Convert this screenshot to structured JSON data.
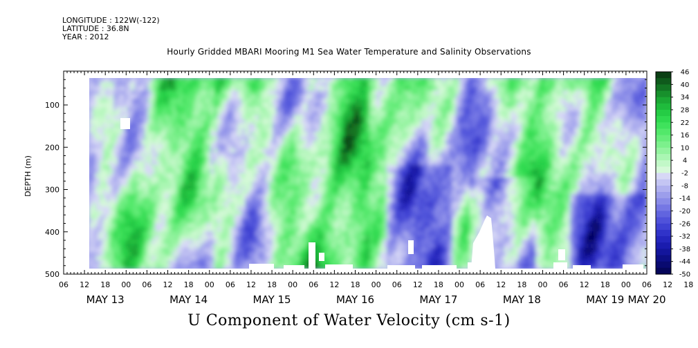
{
  "header": {
    "longitude": "LONGITUDE : 122W(-122)",
    "latitude": "LATITUDE : 36.8N",
    "year": "YEAR : 2012",
    "title": "Hourly Gridded MBARI Mooring M1 Sea Water Temperature and Salinity Observations"
  },
  "chart_data": {
    "type": "heatmap",
    "title": "Hourly Gridded MBARI Mooring M1 Sea Water Temperature and Salinity Observations",
    "variable_title": "U Component of Water Velocity (cm s-1)",
    "ylabel": "DEPTH (m)",
    "y_ticks": [
      100,
      200,
      300,
      400,
      500
    ],
    "y_range": [
      20,
      500
    ],
    "y_inverted": true,
    "x_hour_ticks": [
      "06",
      "12",
      "18",
      "00",
      "06",
      "12",
      "18",
      "00",
      "06",
      "12",
      "18",
      "00",
      "06",
      "12",
      "18",
      "00",
      "06",
      "12",
      "18",
      "00",
      "06",
      "12",
      "18",
      "00",
      "06",
      "12",
      "18",
      "00",
      "06",
      "12",
      "18",
      "00",
      "06"
    ],
    "x_date_labels": [
      {
        "label": "MAY 13",
        "hour": 12
      },
      {
        "label": "MAY 14",
        "hour": 36
      },
      {
        "label": "MAY 15",
        "hour": 60
      },
      {
        "label": "MAY 16",
        "hour": 84
      },
      {
        "label": "MAY 17",
        "hour": 108
      },
      {
        "label": "MAY 18",
        "hour": 132
      },
      {
        "label": "MAY 19",
        "hour": 156
      },
      {
        "label": "MAY 20",
        "hour": 168
      }
    ],
    "x_range_hours": [
      0,
      168
    ],
    "colorbar": {
      "labels": [
        "46",
        "40",
        "34",
        "28",
        "22",
        "16",
        "10",
        "4",
        "-2",
        "-8",
        "-14",
        "-20",
        "-26",
        "-32",
        "-38",
        "-44",
        "-50"
      ],
      "levels": [
        46,
        43,
        40,
        37,
        34,
        31,
        28,
        25,
        22,
        19,
        16,
        13,
        10,
        7,
        4,
        1,
        -2,
        -5,
        -8,
        -11,
        -14,
        -17,
        -20,
        -23,
        -26,
        -29,
        -32,
        -35,
        -38,
        -41,
        -44,
        -47,
        -50
      ],
      "colors": [
        "#0b3f14",
        "#0f5a1c",
        "#137524",
        "#17902c",
        "#1ba834",
        "#1fbb3c",
        "#25cc45",
        "#2fd94f",
        "#3fe25c",
        "#52e86a",
        "#66ec7a",
        "#7cf08c",
        "#93f39f",
        "#aaf6b3",
        "#c2f8c8",
        "#d6f9d9",
        "#d7d8f6",
        "#c4c5f3",
        "#b0b1ef",
        "#9c9eeb",
        "#898be8",
        "#7577e4",
        "#6164df",
        "#5052da",
        "#3f42d3",
        "#3033c9",
        "#2426bd",
        "#1a1cae",
        "#13159c",
        "#0d0f86",
        "#090a70",
        "#05065a"
      ]
    },
    "grid": false,
    "field_note": "Alternating bands of positive (green) and negative (blue) U velocity from surface to ~480 m; white patches are missing data."
  }
}
